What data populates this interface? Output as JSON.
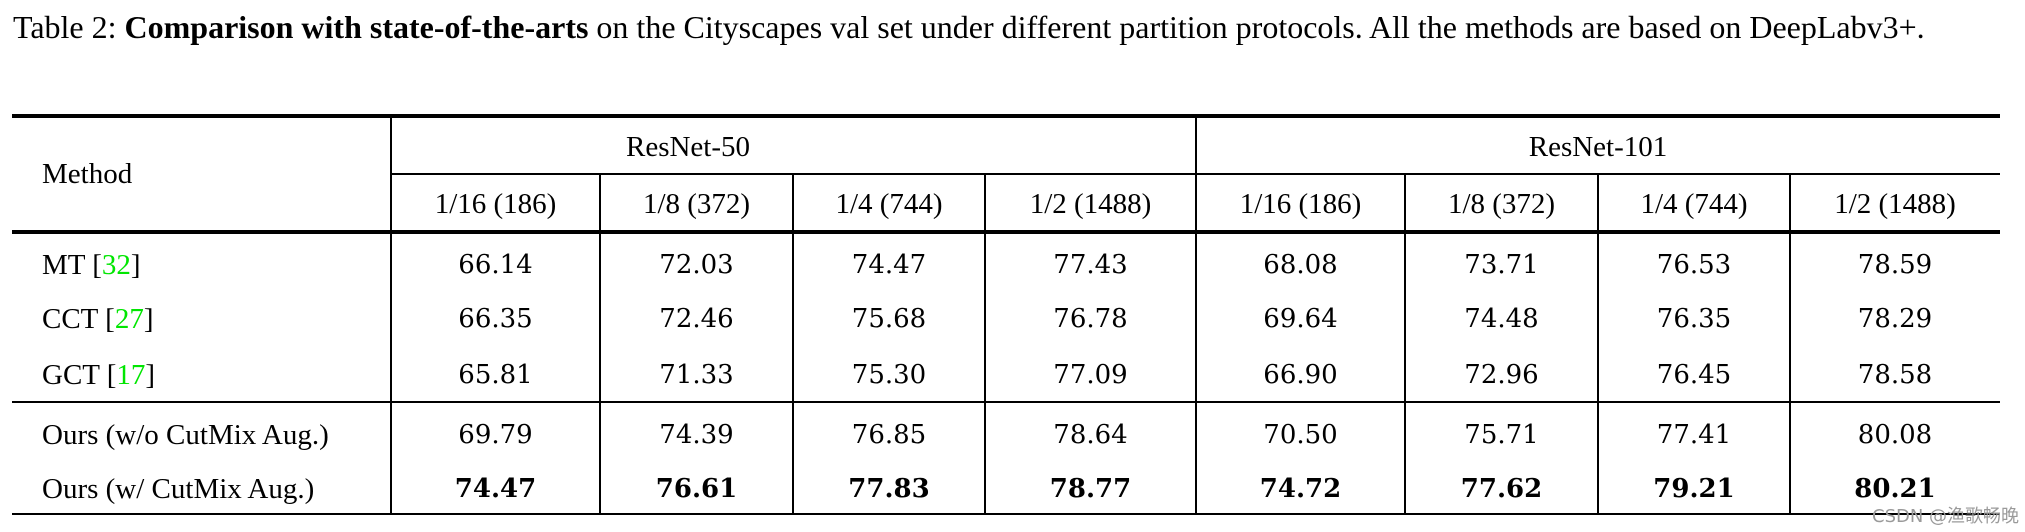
{
  "caption": {
    "label": "Table 2:",
    "bold_title": "Comparison with state-of-the-arts",
    "text": "on the Cityscapes val set under different partition protocols. All the methods are based on DeepLabv3+."
  },
  "table": {
    "method_header": "Method",
    "groups": [
      "ResNet-50",
      "ResNet-101"
    ],
    "partitions": [
      "1/16 (186)",
      "1/8 (372)",
      "1/4 (744)",
      "1/2 (1488)",
      "1/16 (186)",
      "1/8 (372)",
      "1/4 (744)",
      "1/2 (1488)"
    ],
    "rows": [
      {
        "method": "MT",
        "cite": "32",
        "values": [
          "66.14",
          "72.03",
          "74.47",
          "77.43",
          "68.08",
          "73.71",
          "76.53",
          "78.59"
        ],
        "bold": false
      },
      {
        "method": "CCT",
        "cite": "27",
        "values": [
          "66.35",
          "72.46",
          "75.68",
          "76.78",
          "69.64",
          "74.48",
          "76.35",
          "78.29"
        ],
        "bold": false
      },
      {
        "method": "GCT",
        "cite": "17",
        "values": [
          "65.81",
          "71.33",
          "75.30",
          "77.09",
          "66.90",
          "72.96",
          "76.45",
          "78.58"
        ],
        "bold": false
      },
      {
        "method": "Ours (w/o CutMix Aug.)",
        "cite": null,
        "values": [
          "69.79",
          "74.39",
          "76.85",
          "78.64",
          "70.50",
          "75.71",
          "77.41",
          "80.08"
        ],
        "bold": false
      },
      {
        "method": "Ours (w/ CutMix Aug.)",
        "cite": null,
        "values": [
          "74.47",
          "76.61",
          "77.83",
          "78.77",
          "74.72",
          "77.62",
          "79.21",
          "80.21"
        ],
        "bold": true
      }
    ]
  },
  "colors": {
    "citation": "#00ff00",
    "rules": "#000000",
    "watermark": "#9a9a9a"
  },
  "watermark": "CSDN @渔歌畅晚"
}
